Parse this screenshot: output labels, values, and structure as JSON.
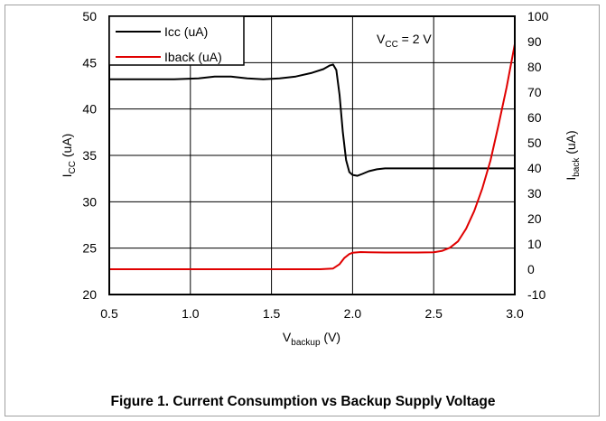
{
  "caption": "Figure 1. Current Consumption vs Backup Supply Voltage",
  "colors": {
    "icc": "#000000",
    "iback": "#e00000",
    "grid": "#000000"
  },
  "chart_data": {
    "type": "line",
    "title": "",
    "annotation": {
      "main": "V",
      "sub": "CC",
      "tail": " = 2 V"
    },
    "xlabel": {
      "main": "V",
      "sub": "backup",
      "tail": " (V)"
    },
    "ylabel_left": {
      "main": "I",
      "sub": "CC",
      "tail": " (uA)"
    },
    "ylabel_right": {
      "main": "I",
      "sub": "back",
      "tail": " (uA)"
    },
    "xlim": [
      0.5,
      3.0
    ],
    "ylim_left": [
      20,
      50
    ],
    "ylim_right": [
      -10,
      100
    ],
    "x_ticks": [
      "0.5",
      "1.0",
      "1.5",
      "2.0",
      "2.5",
      "3.0"
    ],
    "y_left_ticks": [
      "50",
      "45",
      "40",
      "35",
      "30",
      "25",
      "20"
    ],
    "y_right_ticks": [
      "100",
      "90",
      "80",
      "70",
      "60",
      "50",
      "40",
      "30",
      "20",
      "10",
      "0",
      "-10"
    ],
    "grid": true,
    "legend": {
      "placement": "top-left",
      "entries": [
        "Icc (uA)",
        "Iback (uA)"
      ]
    },
    "series": [
      {
        "name": "Icc (uA)",
        "axis": "left",
        "x": [
          0.5,
          0.7,
          0.9,
          1.05,
          1.15,
          1.25,
          1.35,
          1.45,
          1.55,
          1.65,
          1.75,
          1.82,
          1.86,
          1.88,
          1.9,
          1.92,
          1.94,
          1.96,
          1.98,
          2.0,
          2.03,
          2.06,
          2.1,
          2.15,
          2.2,
          2.3,
          2.5,
          2.7,
          3.0
        ],
        "values": [
          43.2,
          43.2,
          43.2,
          43.3,
          43.5,
          43.5,
          43.3,
          43.2,
          43.3,
          43.5,
          43.9,
          44.3,
          44.7,
          44.8,
          44.2,
          41.5,
          37.5,
          34.5,
          33.2,
          32.9,
          32.8,
          33.0,
          33.3,
          33.5,
          33.6,
          33.6,
          33.6,
          33.6,
          33.6
        ]
      },
      {
        "name": "Iback (uA)",
        "axis": "right",
        "x": [
          0.5,
          1.0,
          1.5,
          1.8,
          1.88,
          1.92,
          1.95,
          1.98,
          2.0,
          2.05,
          2.1,
          2.2,
          2.3,
          2.4,
          2.5,
          2.55,
          2.6,
          2.65,
          2.7,
          2.75,
          2.8,
          2.85,
          2.9,
          2.95,
          3.0
        ],
        "values": [
          0.0,
          0.0,
          0.0,
          0.0,
          0.3,
          2.0,
          4.5,
          6.0,
          6.5,
          6.8,
          6.7,
          6.6,
          6.6,
          6.6,
          6.7,
          7.2,
          8.5,
          11.0,
          16.0,
          23.0,
          32.0,
          43.0,
          57.0,
          72.0,
          89.0
        ]
      }
    ]
  }
}
